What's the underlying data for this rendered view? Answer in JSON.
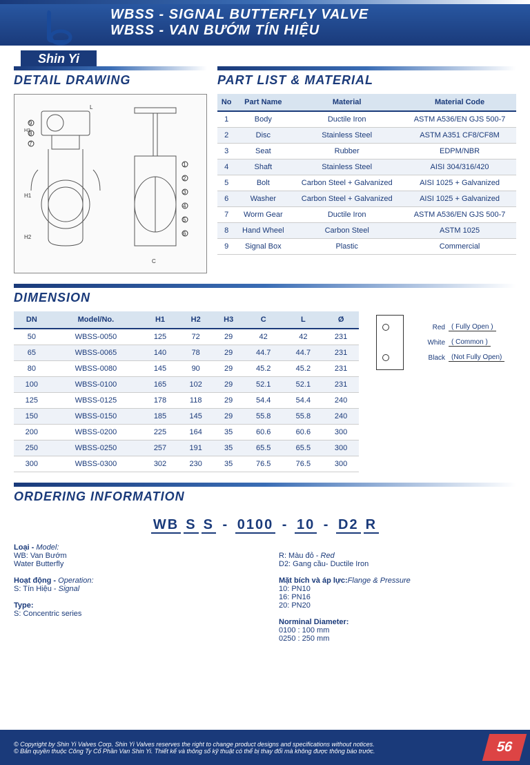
{
  "brand": "Shin Yi",
  "header": {
    "title_en": "WBSS - SIGNAL BUTTERFLY VALVE",
    "title_vn": "WBSS - VAN BƯỚM TÍN HIỆU"
  },
  "sections": {
    "detail_drawing": "DETAIL DRAWING",
    "part_list": "PART LIST & MATERIAL",
    "dimension": "DIMENSION",
    "ordering": "ORDERING INFORMATION"
  },
  "parts": {
    "headers": [
      "No",
      "Part Name",
      "Material",
      "Material Code"
    ],
    "rows": [
      [
        "1",
        "Body",
        "Ductile Iron",
        "ASTM A536/EN GJS 500-7"
      ],
      [
        "2",
        "Disc",
        "Stainless Steel",
        "ASTM A351 CF8/CF8M"
      ],
      [
        "3",
        "Seat",
        "Rubber",
        "EDPM/NBR"
      ],
      [
        "4",
        "Shaft",
        "Stainless Steel",
        "AISI 304/316/420"
      ],
      [
        "5",
        "Bolt",
        "Carbon Steel + Galvanized",
        "AISI 1025 + Galvanized"
      ],
      [
        "6",
        "Washer",
        "Carbon Steel + Galvanized",
        "AISI 1025 + Galvanized"
      ],
      [
        "7",
        "Worm Gear",
        "Ductile Iron",
        "ASTM A536/EN GJS 500-7"
      ],
      [
        "8",
        "Hand Wheel",
        "Carbon Steel",
        "ASTM 1025"
      ],
      [
        "9",
        "Signal Box",
        "Plastic",
        "Commercial"
      ]
    ]
  },
  "dims": {
    "headers": [
      "DN",
      "Model/No.",
      "H1",
      "H2",
      "H3",
      "C",
      "L",
      "Ø"
    ],
    "rows": [
      [
        "50",
        "WBSS-0050",
        "125",
        "72",
        "29",
        "42",
        "42",
        "231"
      ],
      [
        "65",
        "WBSS-0065",
        "140",
        "78",
        "29",
        "44.7",
        "44.7",
        "231"
      ],
      [
        "80",
        "WBSS-0080",
        "145",
        "90",
        "29",
        "45.2",
        "45.2",
        "231"
      ],
      [
        "100",
        "WBSS-0100",
        "165",
        "102",
        "29",
        "52.1",
        "52.1",
        "231"
      ],
      [
        "125",
        "WBSS-0125",
        "178",
        "118",
        "29",
        "54.4",
        "54.4",
        "240"
      ],
      [
        "150",
        "WBSS-0150",
        "185",
        "145",
        "29",
        "55.8",
        "55.8",
        "240"
      ],
      [
        "200",
        "WBSS-0200",
        "225",
        "164",
        "35",
        "60.6",
        "60.6",
        "300"
      ],
      [
        "250",
        "WBSS-0250",
        "257",
        "191",
        "35",
        "65.5",
        "65.5",
        "300"
      ],
      [
        "300",
        "WBSS-0300",
        "302",
        "230",
        "35",
        "76.5",
        "76.5",
        "300"
      ]
    ]
  },
  "wiring": {
    "red": "Red",
    "red_desc": "( Fully Open )",
    "white": "White",
    "white_desc": "( Common )",
    "black": "Black",
    "black_desc": "(Not Fully Open)"
  },
  "code": [
    "WB",
    "S",
    "S",
    "-",
    "0100",
    "-",
    "10",
    "-",
    "D2",
    "R"
  ],
  "ordering_left": [
    {
      "label": "Loại - ",
      "italic": "Model:",
      "l1": "WB: Van Bướm",
      "l2": "Water Butterfly"
    },
    {
      "label": "Hoạt động - ",
      "italic": "Operation:",
      "l1": "S: Tín Hiệu - ",
      "l1i": "Signal"
    },
    {
      "label": "Type:",
      "l1": "S: Concentric series"
    }
  ],
  "ordering_right": [
    {
      "l1": "R: Màu đỏ - ",
      "l1i": "Red",
      "l2": "D2: Gang cầu- Ductile Iron"
    },
    {
      "label": "Mặt bích và áp lực:",
      "italic": "Flange & Pressure",
      "l1": "10: PN10",
      "l2": "16: PN16",
      "l3": "20: PN20"
    },
    {
      "label": "Norminal Diameter:",
      "l1": "0100 : 100 mm",
      "l2": "0250 : 250 mm"
    }
  ],
  "footer": {
    "line1": "© Copyright by Shin Yi Valves Corp. Shin Yi Valves reserves the right to change product designs and specifications without notices.",
    "line2": "© Bản quyền thuộc Công Ty Cổ Phần Van Shin Yi. Thiết kế và thông số kỹ thuật có thể bị thay đổi mà không được thông báo trước.",
    "page": "56"
  }
}
